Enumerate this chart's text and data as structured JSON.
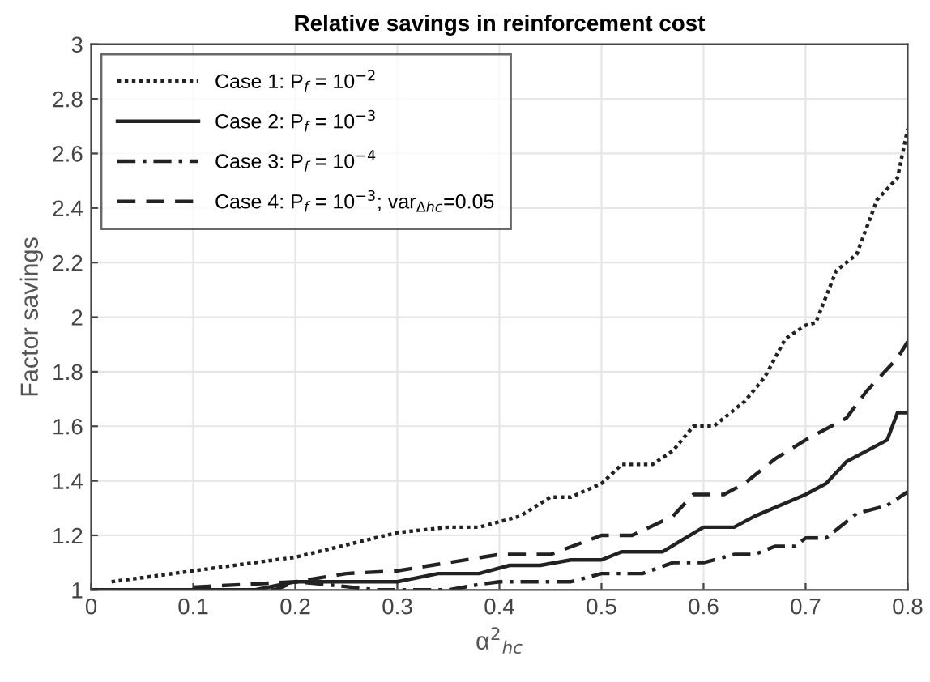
{
  "chart_data": {
    "type": "line",
    "title": "Relative savings in reinforcement cost",
    "xlabel": "α$^{2}$$_{hc}$",
    "ylabel": "Factor savings",
    "xlim": [
      0,
      0.8
    ],
    "xticks": [
      0,
      0.1,
      0.2,
      0.3,
      0.4,
      0.5,
      0.6,
      0.7,
      0.8
    ],
    "ylim": [
      1,
      3
    ],
    "yticks": [
      1,
      1.2,
      1.4,
      1.6,
      1.8,
      2,
      2.2,
      2.4,
      2.6,
      2.8,
      3
    ],
    "grid": true,
    "legend": "top left",
    "marker": "none",
    "series": [
      {
        "name": "Case 1: P$_{f}$ = 10$^{−2}$",
        "color": "#222222",
        "line_style": "dotted",
        "x": [
          0.02,
          0.1,
          0.2,
          0.3,
          0.35,
          0.38,
          0.42,
          0.45,
          0.47,
          0.5,
          0.52,
          0.55,
          0.57,
          0.59,
          0.61,
          0.64,
          0.66,
          0.68,
          0.7,
          0.71,
          0.73,
          0.75,
          0.77,
          0.79,
          0.8
        ],
        "values": [
          1.03,
          1.07,
          1.12,
          1.21,
          1.23,
          1.23,
          1.27,
          1.34,
          1.34,
          1.39,
          1.46,
          1.46,
          1.51,
          1.6,
          1.6,
          1.69,
          1.78,
          1.92,
          1.97,
          1.98,
          2.17,
          2.23,
          2.43,
          2.51,
          2.69
        ]
      },
      {
        "name": "Case 2: P$_{f}$ = 10$^{−3}$",
        "color": "#222222",
        "line_style": "solid",
        "x": [
          0,
          0.16,
          0.2,
          0.22,
          0.3,
          0.34,
          0.38,
          0.41,
          0.44,
          0.47,
          0.5,
          0.52,
          0.56,
          0.6,
          0.63,
          0.65,
          0.7,
          0.72,
          0.74,
          0.78,
          0.79,
          0.8
        ],
        "values": [
          1,
          1,
          1.03,
          1.03,
          1.03,
          1.06,
          1.06,
          1.09,
          1.09,
          1.11,
          1.11,
          1.14,
          1.14,
          1.23,
          1.23,
          1.27,
          1.35,
          1.39,
          1.47,
          1.55,
          1.65,
          1.65
        ]
      },
      {
        "name": "Case 3: P$_{f}$ = 10$^{−4}$",
        "color": "#222222",
        "line_style": "dashdot",
        "x": [
          0,
          0.18,
          0.2,
          0.23,
          0.28,
          0.35,
          0.38,
          0.4,
          0.47,
          0.5,
          0.54,
          0.57,
          0.6,
          0.63,
          0.65,
          0.67,
          0.69,
          0.7,
          0.72,
          0.75,
          0.78,
          0.8
        ],
        "values": [
          1,
          1,
          1.03,
          1.02,
          1,
          1,
          1.02,
          1.03,
          1.03,
          1.06,
          1.06,
          1.1,
          1.1,
          1.13,
          1.13,
          1.16,
          1.16,
          1.19,
          1.19,
          1.28,
          1.31,
          1.36
        ]
      },
      {
        "name": "Case 4: P$_{f}$ = 10$^{−3}$; var$_{Δhc}$=0.05",
        "color": "#222222",
        "line_style": "dashed",
        "x": [
          0.1,
          0.2,
          0.25,
          0.3,
          0.35,
          0.4,
          0.45,
          0.5,
          0.53,
          0.57,
          0.59,
          0.62,
          0.64,
          0.67,
          0.7,
          0.72,
          0.74,
          0.76,
          0.79,
          0.8
        ],
        "values": [
          1.01,
          1.03,
          1.06,
          1.07,
          1.1,
          1.13,
          1.13,
          1.2,
          1.2,
          1.27,
          1.35,
          1.35,
          1.39,
          1.48,
          1.55,
          1.59,
          1.63,
          1.73,
          1.85,
          1.91
        ]
      }
    ]
  }
}
